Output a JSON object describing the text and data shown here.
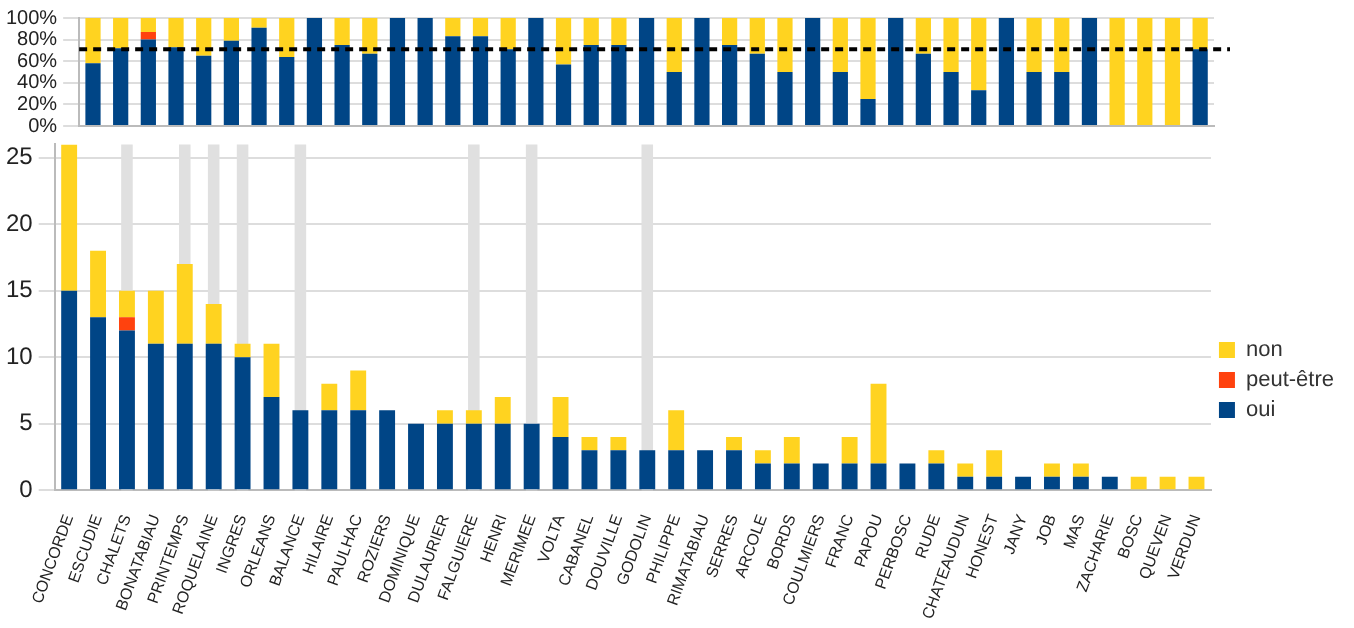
{
  "chart_data": [
    {
      "type": "bar",
      "stacked": true,
      "categories": [
        null,
        null,
        null,
        null,
        null,
        null,
        null,
        null,
        null,
        null,
        null,
        null,
        null,
        null,
        null,
        null,
        null,
        null,
        null,
        null,
        null,
        null,
        null,
        null,
        null,
        null,
        null,
        null,
        null,
        null,
        null,
        null,
        null,
        null,
        null,
        null,
        null,
        null,
        null,
        null,
        null
      ],
      "series": [
        {
          "color": "#004586",
          "values": [
            58,
            72,
            80,
            73,
            65,
            79,
            91,
            64,
            100,
            75,
            67,
            100,
            100,
            83,
            83,
            71,
            100,
            57,
            75,
            75,
            100,
            50,
            100,
            75,
            67,
            50,
            100,
            50,
            25,
            100,
            67,
            50,
            33,
            100,
            50,
            50,
            100,
            0,
            0,
            0,
            71
          ]
        },
        {
          "color": "#ff420e",
          "values": [
            0,
            0,
            7,
            0,
            0,
            0,
            0,
            0,
            0,
            0,
            0,
            0,
            0,
            0,
            0,
            0,
            0,
            0,
            0,
            0,
            0,
            0,
            0,
            0,
            0,
            0,
            0,
            0,
            0,
            0,
            0,
            0,
            0,
            0,
            0,
            0,
            0,
            0,
            0,
            0,
            0
          ]
        },
        {
          "color": "#ffd320",
          "values": [
            42,
            28,
            13,
            27,
            35,
            21,
            9,
            36,
            0,
            25,
            33,
            0,
            0,
            17,
            17,
            29,
            0,
            43,
            25,
            25,
            0,
            50,
            0,
            25,
            33,
            50,
            0,
            50,
            75,
            0,
            33,
            50,
            67,
            0,
            50,
            50,
            0,
            100,
            100,
            100,
            29
          ]
        }
      ],
      "ylim": [
        0,
        100
      ],
      "yticks": [
        {
          "value": 0,
          "label": "0%"
        },
        {
          "value": 20,
          "label": "20%"
        },
        {
          "value": 40,
          "label": "40%"
        },
        {
          "value": 60,
          "label": "60%"
        },
        {
          "value": 80,
          "label": "80%"
        },
        {
          "value": 100,
          "label": "100%"
        }
      ],
      "grid": "y",
      "tick_labels": "y",
      "legend": false,
      "ref_lines": [
        {
          "axis": "y",
          "value": 71,
          "color": "#000000",
          "line_style": "dashed"
        }
      ]
    },
    {
      "type": "bar",
      "stacked": true,
      "categories": [
        "CONCORDE",
        "ESCUDIE",
        "CHALETS",
        "BONATABIAU",
        "PRINTEMPS",
        "ROQUELAINE",
        "INGRES",
        "ORLEANS",
        "BALANCE",
        "HILAIRE",
        "PAULHAC",
        "ROZIERS",
        "DOMINIQUE",
        "DULAURIER",
        "FALGUIERE",
        "HENRI",
        "MERIMEE",
        "VOLTA",
        "CABANEL",
        "DOUVILLE",
        "GODOLIN",
        "PHILIPPE",
        "RIMATABIAU",
        "SERRES",
        "ARCOLE",
        "BORDS",
        "COULMIERS",
        "FRANC",
        "PAPOU",
        "PERBOSC",
        "RUDE",
        "CHATEAUDUN",
        "HONEST",
        "JANY",
        "JOB",
        "MAS",
        "ZACHARIE",
        "BOSC",
        "QUEVEN",
        "VERDUN"
      ],
      "series": [
        {
          "name": "oui",
          "color": "#004586",
          "values": [
            15,
            13,
            12,
            11,
            11,
            11,
            10,
            7,
            6,
            6,
            6,
            6,
            5,
            5,
            5,
            5,
            5,
            4,
            3,
            3,
            3,
            3,
            3,
            3,
            2,
            2,
            2,
            2,
            2,
            2,
            2,
            1,
            1,
            1,
            1,
            1,
            1,
            0,
            0,
            0
          ]
        },
        {
          "name": "peut-être",
          "color": "#ff420e",
          "values": [
            0,
            0,
            1,
            0,
            0,
            0,
            0,
            0,
            0,
            0,
            0,
            0,
            0,
            0,
            0,
            0,
            0,
            0,
            0,
            0,
            0,
            0,
            0,
            0,
            0,
            0,
            0,
            0,
            0,
            0,
            0,
            0,
            0,
            0,
            0,
            0,
            0,
            0,
            0,
            0
          ]
        },
        {
          "name": "non",
          "color": "#ffd320",
          "values": [
            11,
            5,
            2,
            4,
            6,
            3,
            1,
            4,
            0,
            2,
            3,
            0,
            0,
            1,
            1,
            2,
            0,
            3,
            1,
            1,
            0,
            3,
            0,
            1,
            1,
            2,
            0,
            2,
            6,
            0,
            1,
            1,
            2,
            0,
            1,
            1,
            0,
            1,
            1,
            1
          ]
        }
      ],
      "ylim": [
        0,
        26
      ],
      "yticks": [
        0,
        5,
        10,
        15,
        20,
        25
      ],
      "grid": "y",
      "legend": "right",
      "bands": [
        {
          "axis": "x",
          "from": "CHALETS",
          "to": "CHALETS",
          "color": "#e0e0e0"
        },
        {
          "axis": "x",
          "from": "PRINTEMPS",
          "to": "PRINTEMPS",
          "color": "#e0e0e0"
        },
        {
          "axis": "x",
          "from": "ROQUELAINE",
          "to": "ROQUELAINE",
          "color": "#e0e0e0"
        },
        {
          "axis": "x",
          "from": "INGRES",
          "to": "INGRES",
          "color": "#e0e0e0"
        },
        {
          "axis": "x",
          "from": "BALANCE",
          "to": "BALANCE",
          "color": "#e0e0e0"
        },
        {
          "axis": "x",
          "from": "FALGUIERE",
          "to": "FALGUIERE",
          "color": "#e0e0e0"
        },
        {
          "axis": "x",
          "from": "MERIMEE",
          "to": "MERIMEE",
          "color": "#e0e0e0"
        },
        {
          "axis": "x",
          "from": "GODOLIN",
          "to": "GODOLIN",
          "color": "#e0e0e0"
        }
      ]
    }
  ]
}
